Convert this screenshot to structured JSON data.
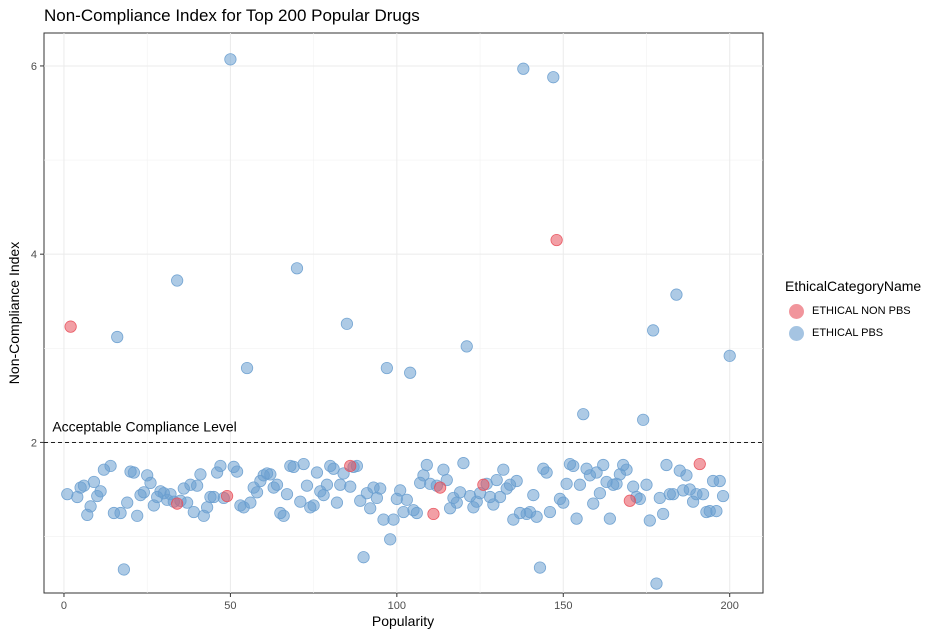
{
  "chart_data": {
    "type": "scatter",
    "title": "Non-Compliance Index for Top 200 Popular Drugs",
    "xlabel": "Popularity",
    "ylabel": "Non-Compliance Index",
    "xlim": [
      -6,
      210
    ],
    "ylim": [
      0.4,
      6.35
    ],
    "x_ticks": [
      0,
      50,
      100,
      150,
      200
    ],
    "y_ticks": [
      2,
      4,
      6
    ],
    "grid": true,
    "legend": {
      "title": "EthicalCategoryName",
      "position": "right",
      "entries": [
        {
          "label": "ETHICAL NON PBS",
          "color": "#E8505B"
        },
        {
          "label": "ETHICAL PBS",
          "color": "#6A9ECF"
        }
      ]
    },
    "reference_line": {
      "y": 2,
      "style": "dashed",
      "label": "Acceptable Compliance Level"
    },
    "series": [
      {
        "name": "ETHICAL NON PBS",
        "color": "#E8505B",
        "points": [
          [
            2,
            3.23
          ],
          [
            34,
            1.35
          ],
          [
            49,
            1.43
          ],
          [
            86,
            1.75
          ],
          [
            111,
            1.24
          ],
          [
            113,
            1.52
          ],
          [
            126,
            1.55
          ],
          [
            148,
            4.15
          ],
          [
            170,
            1.38
          ],
          [
            191,
            1.77
          ]
        ]
      },
      {
        "name": "ETHICAL PBS",
        "color": "#6A9ECF",
        "points": [
          [
            1,
            1.45
          ],
          [
            4,
            1.42
          ],
          [
            5,
            1.52
          ],
          [
            6,
            1.54
          ],
          [
            7,
            1.23
          ],
          [
            8,
            1.32
          ],
          [
            9,
            1.58
          ],
          [
            10,
            1.43
          ],
          [
            11,
            1.48
          ],
          [
            12,
            1.71
          ],
          [
            14,
            1.75
          ],
          [
            15,
            1.25
          ],
          [
            16,
            3.12
          ],
          [
            17,
            1.25
          ],
          [
            18,
            0.65
          ],
          [
            19,
            1.36
          ],
          [
            20,
            1.69
          ],
          [
            21,
            1.68
          ],
          [
            22,
            1.22
          ],
          [
            23,
            1.44
          ],
          [
            24,
            1.47
          ],
          [
            25,
            1.65
          ],
          [
            26,
            1.57
          ],
          [
            27,
            1.33
          ],
          [
            28,
            1.42
          ],
          [
            29,
            1.48
          ],
          [
            30,
            1.46
          ],
          [
            31,
            1.39
          ],
          [
            32,
            1.45
          ],
          [
            33,
            1.37
          ],
          [
            34,
            3.72
          ],
          [
            35,
            1.38
          ],
          [
            36,
            1.51
          ],
          [
            37,
            1.36
          ],
          [
            38,
            1.55
          ],
          [
            39,
            1.26
          ],
          [
            40,
            1.54
          ],
          [
            41,
            1.66
          ],
          [
            42,
            1.22
          ],
          [
            43,
            1.31
          ],
          [
            44,
            1.42
          ],
          [
            45,
            1.42
          ],
          [
            46,
            1.68
          ],
          [
            47,
            1.75
          ],
          [
            48,
            1.41
          ],
          [
            50,
            6.07
          ],
          [
            51,
            1.74
          ],
          [
            52,
            1.69
          ],
          [
            53,
            1.33
          ],
          [
            54,
            1.31
          ],
          [
            55,
            2.79
          ],
          [
            56,
            1.36
          ],
          [
            57,
            1.52
          ],
          [
            58,
            1.47
          ],
          [
            59,
            1.59
          ],
          [
            60,
            1.65
          ],
          [
            61,
            1.67
          ],
          [
            62,
            1.66
          ],
          [
            63,
            1.52
          ],
          [
            64,
            1.55
          ],
          [
            65,
            1.25
          ],
          [
            66,
            1.22
          ],
          [
            67,
            1.45
          ],
          [
            68,
            1.75
          ],
          [
            69,
            1.74
          ],
          [
            70,
            3.85
          ],
          [
            71,
            1.37
          ],
          [
            72,
            1.77
          ],
          [
            73,
            1.54
          ],
          [
            74,
            1.31
          ],
          [
            75,
            1.33
          ],
          [
            76,
            1.68
          ],
          [
            77,
            1.48
          ],
          [
            78,
            1.44
          ],
          [
            79,
            1.55
          ],
          [
            80,
            1.75
          ],
          [
            81,
            1.72
          ],
          [
            82,
            1.36
          ],
          [
            83,
            1.55
          ],
          [
            84,
            1.67
          ],
          [
            85,
            3.26
          ],
          [
            86,
            1.53
          ],
          [
            87,
            1.74
          ],
          [
            88,
            1.75
          ],
          [
            89,
            1.38
          ],
          [
            90,
            0.78
          ],
          [
            91,
            1.46
          ],
          [
            92,
            1.3
          ],
          [
            93,
            1.52
          ],
          [
            94,
            1.41
          ],
          [
            95,
            1.51
          ],
          [
            96,
            1.18
          ],
          [
            97,
            2.79
          ],
          [
            98,
            0.97
          ],
          [
            99,
            1.18
          ],
          [
            100,
            1.4
          ],
          [
            101,
            1.49
          ],
          [
            102,
            1.26
          ],
          [
            103,
            1.39
          ],
          [
            104,
            2.74
          ],
          [
            105,
            1.28
          ],
          [
            106,
            1.25
          ],
          [
            107,
            1.57
          ],
          [
            108,
            1.65
          ],
          [
            109,
            1.76
          ],
          [
            110,
            1.56
          ],
          [
            112,
            1.54
          ],
          [
            114,
            1.71
          ],
          [
            115,
            1.6
          ],
          [
            116,
            1.3
          ],
          [
            117,
            1.41
          ],
          [
            118,
            1.36
          ],
          [
            119,
            1.47
          ],
          [
            120,
            1.78
          ],
          [
            121,
            3.02
          ],
          [
            122,
            1.43
          ],
          [
            123,
            1.31
          ],
          [
            124,
            1.37
          ],
          [
            125,
            1.46
          ],
          [
            127,
            1.56
          ],
          [
            128,
            1.42
          ],
          [
            129,
            1.34
          ],
          [
            130,
            1.6
          ],
          [
            131,
            1.42
          ],
          [
            132,
            1.71
          ],
          [
            133,
            1.51
          ],
          [
            134,
            1.55
          ],
          [
            135,
            1.18
          ],
          [
            136,
            1.59
          ],
          [
            137,
            1.25
          ],
          [
            138,
            5.97
          ],
          [
            139,
            1.24
          ],
          [
            140,
            1.26
          ],
          [
            141,
            1.44
          ],
          [
            142,
            1.21
          ],
          [
            143,
            0.67
          ],
          [
            144,
            1.72
          ],
          [
            145,
            1.68
          ],
          [
            146,
            1.26
          ],
          [
            147,
            5.88
          ],
          [
            149,
            1.4
          ],
          [
            150,
            1.36
          ],
          [
            151,
            1.56
          ],
          [
            152,
            1.77
          ],
          [
            153,
            1.75
          ],
          [
            154,
            1.19
          ],
          [
            155,
            1.55
          ],
          [
            156,
            2.3
          ],
          [
            157,
            1.72
          ],
          [
            158,
            1.65
          ],
          [
            159,
            1.35
          ],
          [
            160,
            1.68
          ],
          [
            161,
            1.46
          ],
          [
            162,
            1.76
          ],
          [
            163,
            1.58
          ],
          [
            164,
            1.19
          ],
          [
            165,
            1.55
          ],
          [
            166,
            1.56
          ],
          [
            167,
            1.66
          ],
          [
            168,
            1.76
          ],
          [
            169,
            1.71
          ],
          [
            171,
            1.53
          ],
          [
            172,
            1.42
          ],
          [
            173,
            1.4
          ],
          [
            174,
            2.24
          ],
          [
            175,
            1.55
          ],
          [
            176,
            1.17
          ],
          [
            177,
            3.19
          ],
          [
            178,
            0.5
          ],
          [
            179,
            1.41
          ],
          [
            180,
            1.24
          ],
          [
            181,
            1.76
          ],
          [
            182,
            1.45
          ],
          [
            183,
            1.45
          ],
          [
            184,
            3.57
          ],
          [
            185,
            1.7
          ],
          [
            186,
            1.49
          ],
          [
            187,
            1.65
          ],
          [
            188,
            1.5
          ],
          [
            189,
            1.37
          ],
          [
            190,
            1.45
          ],
          [
            192,
            1.45
          ],
          [
            193,
            1.26
          ],
          [
            194,
            1.27
          ],
          [
            195,
            1.59
          ],
          [
            196,
            1.27
          ],
          [
            197,
            1.59
          ],
          [
            198,
            1.43
          ],
          [
            200,
            2.92
          ]
        ]
      }
    ]
  }
}
